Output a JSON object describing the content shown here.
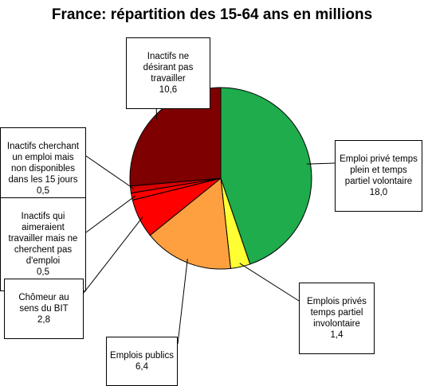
{
  "chart_data": {
    "type": "pie",
    "title": "France: répartition des 15-64 ans en millions",
    "slices": [
      {
        "label": "Emploi privé temps plein et temps partiel volontaire",
        "value": "18,0",
        "v": 18.0,
        "color": "#1fac4d"
      },
      {
        "label": "Emplois privés temps partiel involontaire",
        "value": "1,4",
        "v": 1.4,
        "color": "#ffff33"
      },
      {
        "label": "Emplois publics",
        "value": "6,4",
        "v": 6.4,
        "color": "#ffa040"
      },
      {
        "label": "Chômeur au sens du BIT",
        "value": "2,8",
        "v": 2.8,
        "color": "#ff0000"
      },
      {
        "label": "Inactifs qui aimeraient travailler mais ne cherchent pas d'emploi",
        "value": "0,5",
        "v": 0.5,
        "color": "#ff0000"
      },
      {
        "label": "Inactifs cherchant un emploi mais non disponibles dans les 15 jours",
        "value": "0,5",
        "v": 0.5,
        "color": "#d80000"
      },
      {
        "label": "Inactifs ne désirant pas travailler",
        "value": "10,6",
        "v": 10.6,
        "color": "#7f0000"
      }
    ]
  }
}
